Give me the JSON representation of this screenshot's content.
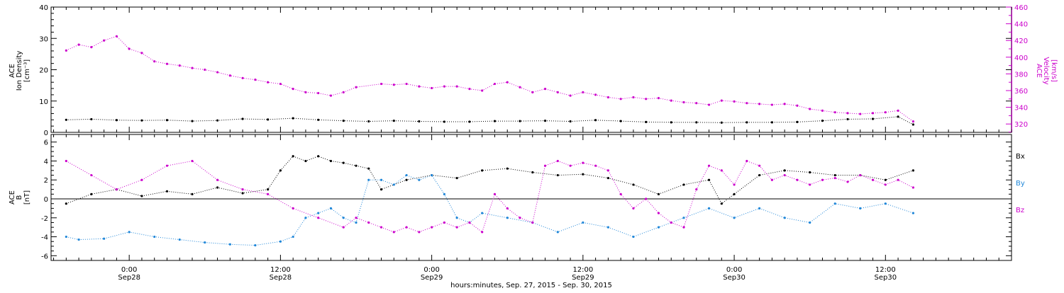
{
  "colors": {
    "black": "#000000",
    "magenta": "#cc00cc",
    "blue": "#1f86d8",
    "axis": "#000000"
  },
  "chart_data": [
    {
      "type": "scatter",
      "panel": "top",
      "ylabel_left": [
        "ACE",
        "Ion Density",
        "[cm⁻³]"
      ],
      "ylabel_right": [
        "ACE",
        "Velocity",
        "[km/s]"
      ],
      "ylim_left": [
        0,
        40
      ],
      "ylim_right": [
        310,
        460
      ],
      "yticks_left": [
        "0",
        "10",
        "20",
        "30",
        "40"
      ],
      "yticks_right": [
        "320",
        "340",
        "360",
        "380",
        "400",
        "420",
        "440",
        "460"
      ],
      "series": [
        {
          "name": "Ion Density",
          "axis": "left",
          "color": "black",
          "x_hours": [
            -5,
            -3,
            -1,
            1,
            3,
            5,
            7,
            9,
            11,
            13,
            15,
            17,
            19,
            21,
            23,
            25,
            27,
            29,
            31,
            33,
            35,
            37,
            39,
            41,
            43,
            45,
            47,
            49,
            51,
            53,
            55,
            57,
            59,
            61,
            62.2
          ],
          "values": [
            4,
            4.2,
            3.9,
            3.8,
            3.9,
            3.6,
            3.8,
            4.3,
            4.1,
            4.5,
            4.0,
            3.7,
            3.5,
            3.7,
            3.5,
            3.4,
            3.4,
            3.6,
            3.6,
            3.7,
            3.5,
            3.9,
            3.6,
            3.3,
            3.2,
            3.2,
            3.1,
            3.2,
            3.2,
            3.3,
            3.7,
            4.2,
            4.3,
            5.0,
            2.5
          ]
        },
        {
          "name": "Velocity",
          "axis": "right",
          "color": "magenta",
          "x_hours": [
            -5,
            -4,
            -3,
            -2,
            -1,
            0,
            1,
            2,
            3,
            4,
            5,
            6,
            7,
            8,
            9,
            10,
            11,
            12,
            13,
            14,
            15,
            16,
            17,
            18,
            20,
            21,
            22,
            23,
            24,
            25,
            26,
            27,
            28,
            29,
            30,
            31,
            32,
            33,
            34,
            35,
            36,
            37,
            38,
            39,
            40,
            41,
            42,
            43,
            44,
            45,
            46,
            47,
            48,
            49,
            50,
            51,
            52,
            53,
            54,
            55,
            56,
            57,
            58,
            59,
            60,
            61,
            62.2
          ],
          "values": [
            408,
            415,
            412,
            420,
            425,
            410,
            405,
            395,
            392,
            390,
            387,
            385,
            382,
            378,
            375,
            373,
            370,
            368,
            362,
            358,
            357,
            354,
            358,
            364,
            368,
            367,
            368,
            365,
            363,
            365,
            365,
            362,
            360,
            368,
            370,
            364,
            358,
            362,
            358,
            354,
            358,
            355,
            352,
            350,
            352,
            350,
            351,
            348,
            346,
            345,
            343,
            348,
            347,
            345,
            344,
            343,
            344,
            342,
            338,
            336,
            334,
            333,
            332,
            333,
            334,
            336,
            323
          ]
        }
      ]
    },
    {
      "type": "scatter",
      "panel": "bottom",
      "ylabel": [
        "ACE",
        "B",
        "[nT]"
      ],
      "ylim": [
        -6.5,
        6.8
      ],
      "yticks": [
        "-6",
        "-4",
        "-2",
        "0",
        "2",
        "4",
        "6"
      ],
      "legend": [
        "Bx",
        "By",
        "Bz"
      ],
      "legend_placement": "right",
      "series": [
        {
          "name": "Bx",
          "color": "black",
          "x_hours": [
            -5,
            -3,
            -1,
            1,
            3,
            5,
            7,
            9,
            11,
            12,
            13,
            14,
            15,
            16,
            17,
            18,
            19,
            20,
            22,
            24,
            26,
            28,
            30,
            32,
            34,
            36,
            38,
            40,
            42,
            44,
            46,
            47,
            48,
            50,
            52,
            54,
            56,
            58,
            60,
            62.2
          ],
          "values": [
            -0.5,
            0.5,
            1.0,
            0.3,
            0.8,
            0.5,
            1.2,
            0.6,
            1.0,
            3.0,
            4.5,
            4.0,
            4.5,
            4.0,
            3.8,
            3.5,
            3.2,
            1.0,
            2.0,
            2.5,
            2.2,
            3.0,
            3.2,
            2.8,
            2.5,
            2.6,
            2.2,
            1.5,
            0.5,
            1.5,
            2.0,
            -0.5,
            0.5,
            2.5,
            3.0,
            2.8,
            2.5,
            2.5,
            2.0,
            3.0
          ]
        },
        {
          "name": "By",
          "color": "blue",
          "x_hours": [
            -5,
            -4,
            -2,
            0,
            2,
            4,
            6,
            8,
            10,
            12,
            13,
            14,
            15,
            16,
            17,
            18,
            19,
            20,
            21,
            22,
            23,
            24,
            25,
            26,
            27,
            28,
            30,
            32,
            34,
            36,
            38,
            40,
            42,
            44,
            46,
            48,
            50,
            52,
            54,
            56,
            58,
            60,
            62.2
          ],
          "values": [
            -4,
            -4.3,
            -4.2,
            -3.5,
            -4.0,
            -4.3,
            -4.6,
            -4.8,
            -4.9,
            -4.5,
            -4.0,
            -2.0,
            -1.5,
            -1.0,
            -2.0,
            -2.5,
            2.0,
            2.0,
            1.5,
            2.5,
            2.0,
            2.5,
            0.5,
            -2.0,
            -2.5,
            -1.5,
            -2.0,
            -2.5,
            -3.5,
            -2.5,
            -3.0,
            -4.0,
            -3.0,
            -2.0,
            -1.0,
            -2.0,
            -1.0,
            -2.0,
            -2.5,
            -0.5,
            -1.0,
            -0.5,
            -1.5
          ]
        },
        {
          "name": "Bz",
          "color": "magenta",
          "x_hours": [
            -5,
            -3,
            -1,
            1,
            3,
            5,
            7,
            9,
            11,
            13,
            15,
            17,
            18,
            19,
            20,
            21,
            22,
            23,
            24,
            25,
            26,
            27,
            28,
            29,
            30,
            31,
            32,
            33,
            34,
            35,
            36,
            37,
            38,
            39,
            40,
            41,
            42,
            43,
            44,
            45,
            46,
            47,
            48,
            49,
            50,
            51,
            52,
            53,
            54,
            55,
            56,
            57,
            58,
            59,
            60,
            61,
            62.2
          ],
          "values": [
            4,
            2.5,
            1.0,
            2.0,
            3.5,
            4.0,
            2.0,
            1.0,
            0.5,
            -1.0,
            -2.0,
            -3.0,
            -2.0,
            -2.5,
            -3.0,
            -3.5,
            -3.0,
            -3.5,
            -3.0,
            -2.5,
            -3.0,
            -2.5,
            -3.5,
            0.5,
            -1.0,
            -2.0,
            -2.5,
            3.5,
            4.0,
            3.5,
            3.8,
            3.5,
            3.0,
            0.5,
            -1.0,
            0.0,
            -1.5,
            -2.5,
            -3.0,
            1.0,
            3.5,
            3.0,
            1.5,
            4.0,
            3.5,
            2.0,
            2.5,
            2.0,
            1.5,
            2.0,
            2.2,
            1.8,
            2.5,
            2.0,
            1.5,
            2.0,
            1.2
          ]
        }
      ]
    }
  ],
  "xaxis": {
    "range_hours": [
      -6.2,
      70
    ],
    "ticks": [
      {
        "hours": 0,
        "time": "0:00",
        "date": "Sep28"
      },
      {
        "hours": 12,
        "time": "12:00",
        "date": "Sep28"
      },
      {
        "hours": 24,
        "time": "0:00",
        "date": "Sep29"
      },
      {
        "hours": 36,
        "time": "12:00",
        "date": "Sep29"
      },
      {
        "hours": 48,
        "time": "0:00",
        "date": "Sep30"
      },
      {
        "hours": 60,
        "time": "12:00",
        "date": "Sep30"
      }
    ],
    "label": "hours:minutes, Sep. 27, 2015 - Sep. 30, 2015"
  }
}
